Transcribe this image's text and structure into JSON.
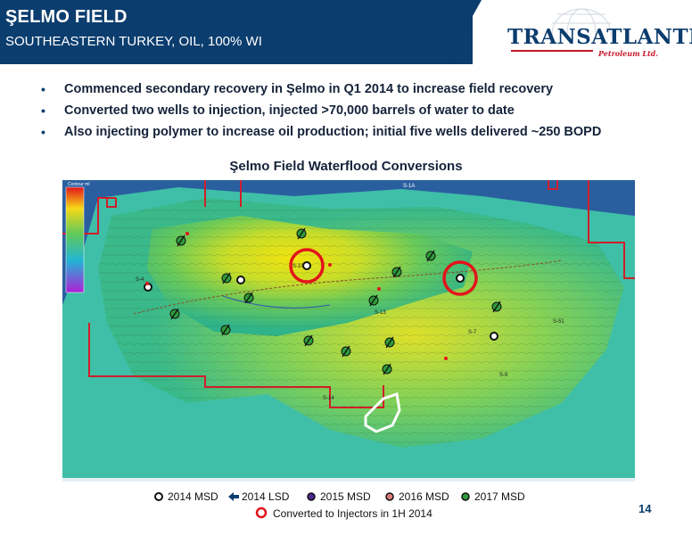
{
  "header": {
    "title": "ŞELMO FIELD",
    "subtitle": "SOUTHEASTERN TURKEY, OIL, 100% WI"
  },
  "logo": {
    "name": "TRANSATLANTIC",
    "tagline": "Petroleum Ltd.",
    "color": "#0b3d6e",
    "accent": "#c7182a"
  },
  "bullets": [
    "Commenced secondary recovery in Şelmo in Q1 2014 to increase field recovery",
    "Converted two wells to injection, injected >70,000 barrels of water to date",
    "Also injecting polymer to increase oil production; initial five wells delivered ~250 BOPD"
  ],
  "map": {
    "title": "Şelmo Field Waterflood Conversions",
    "scale_label": "Contour ml",
    "well_labels": [
      "S-1A",
      "S-4",
      "S-10",
      "S-13",
      "S-7",
      "S-9",
      "S-51",
      "S-14"
    ]
  },
  "legend": {
    "items": [
      {
        "label": "2014 MSD",
        "color": "#ffffff",
        "icon": "white-dot-icon"
      },
      {
        "label": "2014 LSD",
        "color": "#0b3d6e",
        "icon": "arrow-left-icon"
      },
      {
        "label": "2015 MSD",
        "color": "#4b2a8a",
        "icon": "purple-dot-icon"
      },
      {
        "label": "2016 MSD",
        "color": "#e07b7b",
        "icon": "pink-dot-icon"
      },
      {
        "label": "2017 MSD",
        "color": "#2e9b3a",
        "icon": "green-dot-icon"
      }
    ],
    "injector_label": "Converted to Injectors in 1H 2014",
    "injector_color": "#e3141b"
  },
  "page_number": "14"
}
